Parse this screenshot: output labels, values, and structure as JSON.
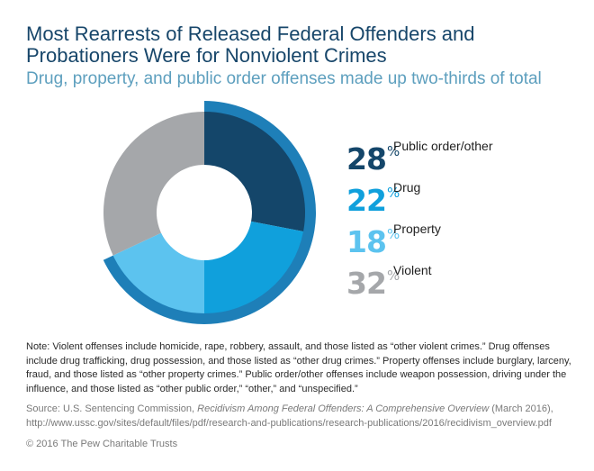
{
  "header": {
    "title": "Most Rearrests of Released Federal Offenders and Probationers Were for Nonviolent Crimes",
    "subtitle": "Drug, property, and public order offenses made up two-thirds of total"
  },
  "chart_data": {
    "type": "pie",
    "variant": "donut",
    "categories": [
      "Public order/other",
      "Drug",
      "Property",
      "Violent"
    ],
    "values": [
      28,
      22,
      18,
      32
    ],
    "unit": "%",
    "colors": [
      "#14466a",
      "#10a0dc",
      "#5cc3ef",
      "#a5a7aa"
    ],
    "highlight_ring_color": "#1e7fb8",
    "legend_position": "right"
  },
  "footer": {
    "note": "Note: Violent offenses include homicide, rape, robbery, assault, and those listed as “other violent crimes.” Drug offenses include drug trafficking, drug possession, and those listed as “other drug crimes.” Property offenses include burglary, larceny, fraud, and those listed as “other property crimes.” Public order/other offenses include weapon possession, driving under the influence, and those listed as “other public order,” “other,” and “unspecified.”",
    "source_prefix": "Source: U.S. Sentencing Commission, ",
    "source_title": "Recidivism Among Federal Offenders: A Comprehensive Overview",
    "source_suffix": " (March 2016), http://www.ussc.gov/sites/default/files/pdf/research-and-publications/research-publications/2016/recidivism_overview.pdf",
    "copyright": "© 2016 The Pew Charitable Trusts"
  }
}
